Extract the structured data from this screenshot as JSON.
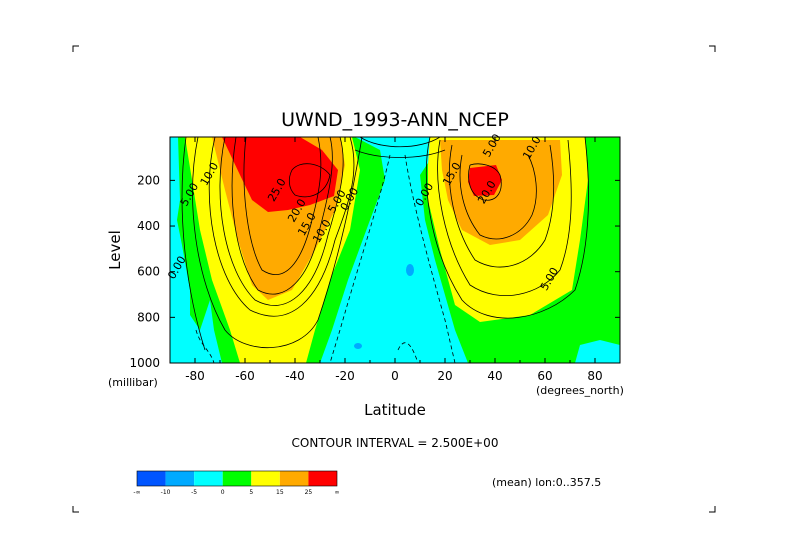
{
  "chart_data": {
    "type": "contour",
    "title": "UWND_1993-ANN_NCEP",
    "xlabel": "Latitude",
    "ylabel": "Level",
    "x_unit": "(degrees_north)",
    "y_unit": "(millibar)",
    "x_range": [
      -90,
      90
    ],
    "y_range": [
      1000,
      10
    ],
    "x_ticks": [
      -80,
      -60,
      -40,
      -20,
      0,
      20,
      40,
      60,
      80
    ],
    "y_ticks": [
      200,
      400,
      600,
      800,
      1000
    ],
    "contour_interval_text": "CONTOUR INTERVAL = 2.500E+00",
    "footer_note": "(mean) lon:0..357.5",
    "contour_labels": [
      {
        "text": "10.0",
        "lat": -73,
        "lev": 180
      },
      {
        "text": "5.00",
        "lat": -81,
        "lev": 270
      },
      {
        "text": "0.00",
        "lat": -86,
        "lev": 590
      },
      {
        "text": "25.0",
        "lat": -46,
        "lev": 250
      },
      {
        "text": "20.0",
        "lat": -38,
        "lev": 340
      },
      {
        "text": "15.0",
        "lat": -34,
        "lev": 400
      },
      {
        "text": "10.0",
        "lat": -28,
        "lev": 430
      },
      {
        "text": "5.00",
        "lat": -22,
        "lev": 300
      },
      {
        "text": "0.00",
        "lat": -17,
        "lev": 290
      },
      {
        "text": "0.00",
        "lat": 13,
        "lev": 270
      },
      {
        "text": "15.0",
        "lat": 24,
        "lev": 180
      },
      {
        "text": "20.0",
        "lat": 38,
        "lev": 260
      },
      {
        "text": "5.00",
        "lat": 40,
        "lev": 55
      },
      {
        "text": "10.0",
        "lat": 56,
        "lev": 65
      },
      {
        "text": "5.00",
        "lat": 63,
        "lev": 640
      }
    ],
    "colorbar": {
      "colors": [
        "#0055ff",
        "#00aaff",
        "#00ffff",
        "#00ff00",
        "#ffff00",
        "#ffaa00",
        "#ff0000"
      ],
      "labels": [
        "-∞",
        "-10",
        "-5",
        "0",
        "5",
        "15",
        "25",
        "∞"
      ]
    }
  }
}
